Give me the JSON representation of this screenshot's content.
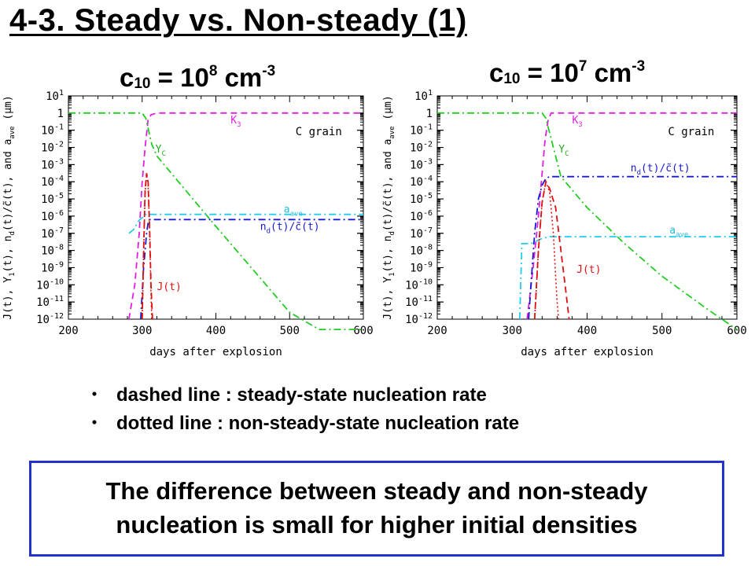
{
  "slide": {
    "title": "4-3. Steady vs. Non-steady (1)",
    "panels": [
      {
        "c_symbol": "c",
        "c_subscript": "10",
        "equals": " = 10",
        "exponent": "8",
        "unit": " cm",
        "unit_exponent": "-3"
      },
      {
        "c_symbol": "c",
        "c_subscript": "10",
        "equals": " = 10",
        "exponent": "7",
        "unit": " cm",
        "unit_exponent": "-3"
      }
    ],
    "bullets": [
      {
        "marker": "・",
        "text": "dashed line : steady-state nucleation rate"
      },
      {
        "marker": "・",
        "text": "dotted line  : non-steady-state nucleation rate"
      }
    ],
    "conclusion": {
      "line1": "The difference between steady and non-steady",
      "line2": "nucleation is small for higher initial densities"
    }
  },
  "chart_data": [
    {
      "type": "line",
      "xlabel": "days after explosion",
      "ylabel": "J(t), Y₁(t), n_d(t)/c̃(t), and a_ave (μm)",
      "xlim": [
        200,
        600
      ],
      "ylim_log10": [
        -12,
        1
      ],
      "x_ticks": [
        200,
        300,
        400,
        500,
        600
      ],
      "y_tick_labels": [
        "10-12",
        "10-11",
        "10-10",
        "10-9",
        "10-8",
        "10-7",
        "10-6",
        "10-5",
        "10-4",
        "10-3",
        "10-2",
        "10-1",
        "1",
        "101"
      ],
      "grid": false,
      "annotation": "C grain",
      "series": [
        {
          "name": "K3",
          "color": "#e020e0",
          "style": "dashed",
          "x": [
            282,
            290,
            296,
            300,
            304,
            308,
            312,
            320,
            600
          ],
          "log10_y": [
            -12,
            -10,
            -7,
            -4,
            -2,
            -0.4,
            -0.1,
            0,
            0
          ]
        },
        {
          "name": "Yc",
          "color": "#22cc22",
          "style": "dash-dot",
          "x": [
            200,
            300,
            305,
            313,
            320,
            400,
            500,
            540,
            560,
            600
          ],
          "log10_y": [
            0,
            0,
            -0.3,
            -1.8,
            -2.5,
            -6.6,
            -11.6,
            -12.6,
            -12.6,
            -12.6
          ]
        },
        {
          "name": "a_ave",
          "color": "#22ccee",
          "style": "dash-dot",
          "x": [
            282,
            285,
            288,
            290,
            293,
            297,
            300,
            302,
            304,
            310,
            600
          ],
          "log10_y": [
            -7,
            -6.9,
            -6.8,
            -6.7,
            -6.4,
            -6.2,
            -6.1,
            -6,
            -5.9,
            -5.9,
            -5.9
          ]
        },
        {
          "name": "n_d(t)/c̃(t)",
          "color": "#1a1acc",
          "style": "dash-dot",
          "x": [
            298,
            300,
            302,
            304,
            306,
            308,
            310,
            312,
            600
          ],
          "log10_y": [
            -12,
            -10.5,
            -9,
            -8,
            -7,
            -6.4,
            -6.2,
            -6.2,
            -6.2
          ]
        },
        {
          "name": "J(t)",
          "color": "#dd1111",
          "style": "dashed",
          "x": [
            300,
            302,
            304,
            306,
            308,
            310,
            312,
            314
          ],
          "log10_y": [
            -12,
            -8,
            -4.5,
            -3.5,
            -4,
            -6.5,
            -10,
            -12
          ]
        },
        {
          "name": "J(t) non-steady",
          "color": "#dd1111",
          "style": "dotted",
          "x": [
            300,
            302,
            304,
            306,
            308,
            310,
            312,
            313
          ],
          "log10_y": [
            -12,
            -8.2,
            -4.7,
            -3.6,
            -4.1,
            -6.7,
            -10.5,
            -12
          ]
        }
      ]
    },
    {
      "type": "line",
      "xlabel": "days after explosion",
      "ylabel": "J(t), Y₁(t), n_d(t)/c̃(t), and a_ave (μm)",
      "xlim": [
        200,
        600
      ],
      "ylim_log10": [
        -12,
        1
      ],
      "x_ticks": [
        200,
        300,
        400,
        500,
        600
      ],
      "y_tick_labels": [
        "10-12",
        "10-11",
        "10-10",
        "10-9",
        "10-8",
        "10-7",
        "10-6",
        "10-5",
        "10-4",
        "10-3",
        "10-2",
        "10-1",
        "1",
        "101"
      ],
      "grid": false,
      "annotation": "C grain",
      "series": [
        {
          "name": "K3",
          "color": "#e020e0",
          "style": "dashed",
          "x": [
            320,
            328,
            335,
            340,
            344,
            348,
            352,
            360,
            600
          ],
          "log10_y": [
            -12,
            -9,
            -6,
            -3.5,
            -1.5,
            -0.4,
            0,
            0,
            0
          ]
        },
        {
          "name": "Yc",
          "color": "#22cc22",
          "style": "dash-dot",
          "x": [
            200,
            340,
            345,
            355,
            365,
            400,
            450,
            500,
            560,
            580,
            600
          ],
          "log10_y": [
            0,
            0,
            -0.3,
            -2,
            -3.7,
            -5.5,
            -7.6,
            -9.5,
            -11.4,
            -12,
            -12.6
          ]
        },
        {
          "name": "a_ave",
          "color": "#22ccee",
          "style": "dash-dot",
          "x": [
            310,
            313,
            316,
            320,
            325,
            330,
            340,
            350,
            360,
            600
          ],
          "log10_y": [
            -12,
            -7.6,
            -7.6,
            -7.6,
            -7.6,
            -7.5,
            -7.3,
            -7.2,
            -7.2,
            -7.2
          ]
        },
        {
          "name": "n_d(t)/c̃(t)",
          "color": "#1a1acc",
          "style": "dash-dot",
          "x": [
            322,
            325,
            330,
            335,
            340,
            345,
            350,
            360,
            600
          ],
          "log10_y": [
            -12,
            -10,
            -7,
            -5,
            -4.2,
            -3.8,
            -3.7,
            -3.7,
            -3.7
          ]
        },
        {
          "name": "J(t)",
          "color": "#dd1111",
          "style": "dashed",
          "x": [
            330,
            335,
            340,
            345,
            350,
            358,
            365,
            372,
            376
          ],
          "log10_y": [
            -12,
            -8,
            -5.2,
            -4,
            -4.4,
            -5.5,
            -8,
            -10.5,
            -12
          ]
        },
        {
          "name": "J(t) non-steady",
          "color": "#dd1111",
          "style": "dotted",
          "x": [
            330,
            335,
            340,
            345,
            350,
            355,
            358,
            360,
            362
          ],
          "log10_y": [
            -12,
            -8,
            -5.2,
            -4,
            -4.6,
            -7,
            -9.5,
            -11,
            -12
          ]
        }
      ],
      "label_names": {
        "K3": "K3",
        "Yc": "Yc",
        "a_ave": "aave",
        "n_d": "nd(t)/c̃(t)",
        "J": "J(t)"
      }
    }
  ],
  "labels": {
    "K3": {
      "main": "K",
      "sub": "3"
    },
    "Yc": {
      "main": "Y",
      "sub": "C"
    },
    "a_ave": {
      "main": "a",
      "sub": "ave"
    },
    "nd": {
      "main": "n",
      "sub": "d",
      "rest": "(t)/c̃(t)"
    },
    "J": "J(t)",
    "y_axis": {
      "p1": "J(t), Y",
      "s1": "1",
      "p2": "(t), n",
      "s2": "d",
      "p3": "(t)/c̃(t), and a",
      "s3": "ave",
      "p4": " (μm)"
    }
  }
}
